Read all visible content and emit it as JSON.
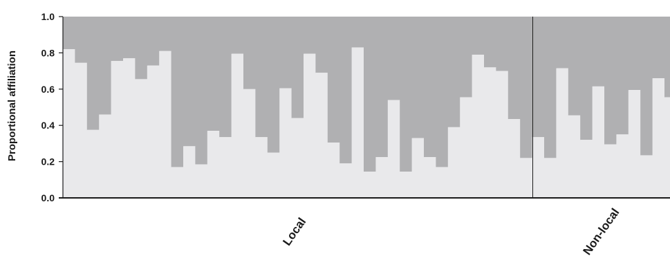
{
  "chart_data": {
    "type": "bar",
    "subtype": "stacked-proportion",
    "ylabel": "Proportional affiliation",
    "ylim": [
      0,
      1
    ],
    "y_ticks": [
      "0.0",
      "0.2",
      "0.4",
      "0.6",
      "0.8",
      "1.0"
    ],
    "colors": {
      "lower": "#e9e9eb",
      "upper": "#b0b0b2",
      "axis": "#1a1a1a"
    },
    "groups": [
      {
        "label": "Local",
        "values": [
          0.82,
          0.745,
          0.375,
          0.46,
          0.755,
          0.77,
          0.655,
          0.73,
          0.81,
          0.17,
          0.285,
          0.185,
          0.37,
          0.335,
          0.795,
          0.6,
          0.335,
          0.25,
          0.605,
          0.44,
          0.795,
          0.69,
          0.305,
          0.19,
          0.83,
          0.145,
          0.225,
          0.54,
          0.145,
          0.33,
          0.225,
          0.17,
          0.39,
          0.555,
          0.79,
          0.72,
          0.7,
          0.435,
          0.22
        ]
      },
      {
        "label": "Non-local",
        "values": [
          0.335,
          0.22,
          0.715,
          0.455,
          0.32,
          0.615,
          0.295,
          0.35,
          0.595,
          0.235,
          0.66,
          0.555
        ]
      }
    ]
  }
}
